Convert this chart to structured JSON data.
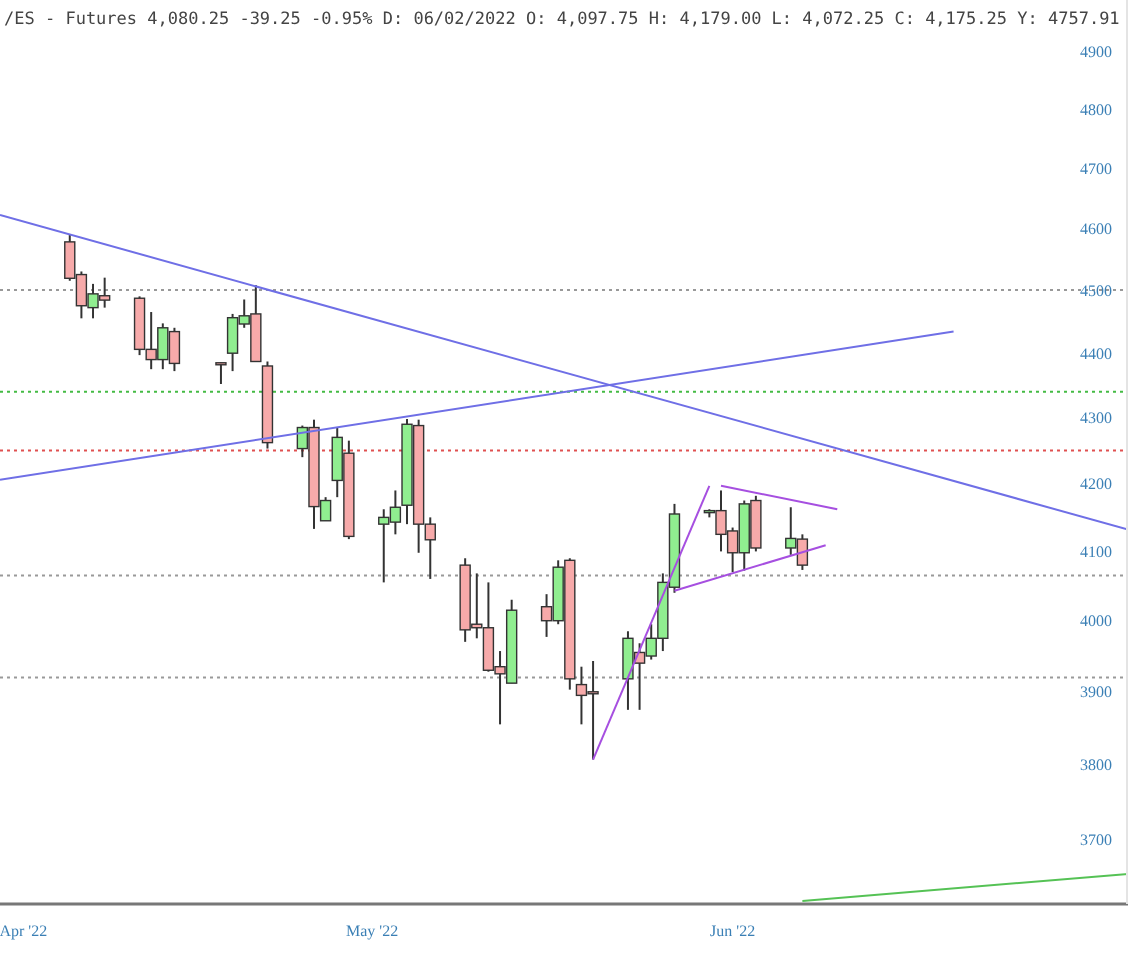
{
  "chart_data": {
    "type": "candlestick",
    "title": "/ES - Futures 4,080.25 -39.25 -0.95% D: 06/02/2022 O: 4,097.75 H: 4,179.00 L: 4,072.25 C: 4,175.25 Y:  4757.91",
    "xlim": [
      "2022-03-30",
      "2022-07-05"
    ],
    "xticks": [
      {
        "value": "2022-04-01",
        "label": "Apr '22"
      },
      {
        "value": "2022-05-01",
        "label": "May '22"
      },
      {
        "value": "2022-06-01",
        "label": "Jun '22"
      }
    ],
    "ylim": [
      3616,
      4990
    ],
    "yticks": [
      3700,
      3800,
      3900,
      4000,
      4100,
      4200,
      4300,
      4400,
      4500,
      4600,
      4700,
      4800,
      4900
    ],
    "log": true,
    "grid": false,
    "ref_lines": [
      {
        "axis": "y",
        "value": 4500,
        "color": "#999999",
        "line_style": "dotted"
      },
      {
        "axis": "y",
        "value": 4340,
        "color": "#44bb44",
        "line_style": "dotted"
      },
      {
        "axis": "y",
        "value": 4250,
        "color": "#e05050",
        "line_style": "dotted"
      },
      {
        "axis": "y",
        "value": 4065,
        "color": "#999999",
        "line_style": "dotted"
      },
      {
        "axis": "y",
        "value": 3920,
        "color": "#999999",
        "line_style": "dotted"
      }
    ],
    "series": [
      {
        "x": [
          "2022-04-05",
          "2022-04-06",
          "2022-04-07",
          "2022-04-08",
          "2022-04-11",
          "2022-04-12",
          "2022-04-13",
          "2022-04-14",
          "2022-04-18",
          "2022-04-19",
          "2022-04-20",
          "2022-04-21",
          "2022-04-22",
          "2022-04-25",
          "2022-04-26",
          "2022-04-27",
          "2022-04-28",
          "2022-04-29",
          "2022-05-02",
          "2022-05-03",
          "2022-05-04",
          "2022-05-05",
          "2022-05-06",
          "2022-05-09",
          "2022-05-10",
          "2022-05-11",
          "2022-05-12",
          "2022-05-13",
          "2022-05-16",
          "2022-05-17",
          "2022-05-18",
          "2022-05-19",
          "2022-05-20",
          "2022-05-23",
          "2022-05-24",
          "2022-05-25",
          "2022-05-26",
          "2022-05-27",
          "2022-05-30",
          "2022-05-31",
          "2022-06-01",
          "2022-06-02",
          "2022-06-03",
          "2022-06-06",
          "2022-06-07"
        ],
        "ohlc": [
          [
            4578,
            4590,
            4515,
            4519
          ],
          [
            4525,
            4530,
            4455,
            4475
          ],
          [
            4472,
            4510,
            4455,
            4494
          ],
          [
            4491,
            4520,
            4472,
            4484
          ],
          [
            4487,
            4490,
            4397,
            4406
          ],
          [
            4406,
            4465,
            4375,
            4390
          ],
          [
            4390,
            4447,
            4375,
            4440
          ],
          [
            4434,
            4440,
            4372,
            4384
          ],
          [
            4385,
            4385,
            4352,
            4383
          ],
          [
            4400,
            4462,
            4372,
            4456
          ],
          [
            4446,
            4485,
            4440,
            4459
          ],
          [
            4462,
            4508,
            4387,
            4387
          ],
          [
            4380,
            4387,
            4253,
            4262
          ],
          [
            4253,
            4288,
            4240,
            4285
          ],
          [
            4285,
            4297,
            4133,
            4166
          ],
          [
            4145,
            4180,
            4145,
            4175
          ],
          [
            4205,
            4285,
            4180,
            4270
          ],
          [
            4246,
            4265,
            4118,
            4122
          ],
          [
            4140,
            4162,
            4055,
            4150
          ],
          [
            4143,
            4190,
            4125,
            4165
          ],
          [
            4168,
            4298,
            4140,
            4290
          ],
          [
            4288,
            4297,
            4098,
            4140
          ],
          [
            4140,
            4150,
            4060,
            4117
          ],
          [
            4080,
            4090,
            3970,
            3987
          ],
          [
            3995,
            4068,
            3975,
            3990
          ],
          [
            3990,
            4055,
            3928,
            3930
          ],
          [
            3935,
            3957,
            3855,
            3925
          ],
          [
            3912,
            4030,
            3912,
            4015
          ],
          [
            4020,
            4038,
            3977,
            4000
          ],
          [
            4000,
            4087,
            3995,
            4077
          ],
          [
            4087,
            4090,
            3903,
            3918
          ],
          [
            3910,
            3935,
            3855,
            3895
          ],
          [
            3900,
            3943,
            3807,
            3898
          ],
          [
            3918,
            3985,
            3875,
            3975
          ],
          [
            3955,
            3968,
            3875,
            3940
          ],
          [
            3950,
            3995,
            3945,
            3975
          ],
          [
            3975,
            4068,
            3957,
            4055
          ],
          [
            4048,
            4170,
            4040,
            4155
          ],
          [
            4158,
            4162,
            4150,
            4160
          ],
          [
            4160,
            4190,
            4100,
            4125
          ],
          [
            4130,
            4135,
            4070,
            4098
          ],
          [
            4098,
            4175,
            4072,
            4170
          ],
          [
            4175,
            4182,
            4100,
            4105
          ],
          [
            4105,
            4165,
            4095,
            4119
          ],
          [
            4118,
            4125,
            4073,
            4080
          ]
        ]
      },
      {
        "type": "line",
        "color": "#6f6fe6",
        "x": [
          "2022-03-30",
          "2022-07-05"
        ],
        "values": [
          4622,
          4132
        ]
      },
      {
        "type": "line",
        "color": "#6f6fe6",
        "x": [
          "2022-03-30",
          "2022-06-20"
        ],
        "values": [
          4206,
          4434
        ]
      },
      {
        "type": "line",
        "color": "#a64fe0",
        "x": [
          "2022-05-20",
          "2022-05-30"
        ],
        "values": [
          3807,
          4197
        ]
      },
      {
        "type": "line",
        "color": "#a64fe0",
        "x": [
          "2022-05-31",
          "2022-06-10"
        ],
        "values": [
          4197,
          4162
        ]
      },
      {
        "type": "line",
        "color": "#a64fe0",
        "x": [
          "2022-05-27",
          "2022-06-09"
        ],
        "values": [
          4043,
          4109
        ]
      },
      {
        "type": "line",
        "color": "#55c255",
        "x": [
          "2022-06-07",
          "2022-07-05"
        ],
        "values": [
          3620,
          3655
        ]
      }
    ]
  }
}
